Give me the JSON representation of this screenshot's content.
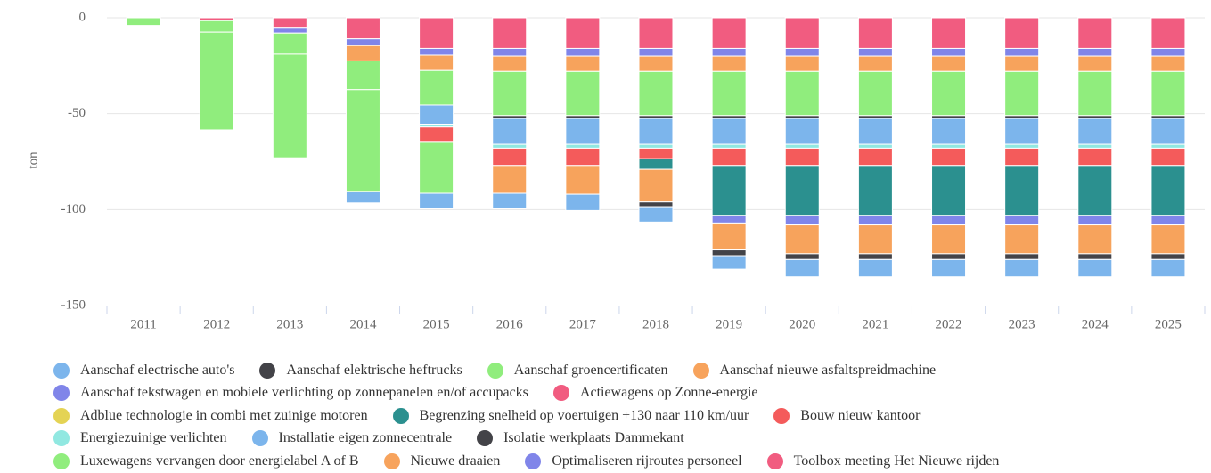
{
  "chart_data": {
    "type": "stacked_bar",
    "y_label": "ton",
    "categories": [
      "2011",
      "2012",
      "2013",
      "2014",
      "2015",
      "2016",
      "2017",
      "2018",
      "2019",
      "2020",
      "2021",
      "2022",
      "2023",
      "2024",
      "2025"
    ],
    "ylim": [
      -150,
      3
    ],
    "yticks": [
      0,
      -50,
      -100,
      -150
    ],
    "grid": true,
    "series": [
      {
        "name": "Aanschaf electrische auto's",
        "color": "#7cb5ec",
        "values": [
          0,
          0,
          0,
          -6,
          -8,
          -8,
          -8.5,
          -8,
          -7,
          -9,
          -9,
          -9,
          -9,
          -9,
          -9
        ]
      },
      {
        "name": "Aanschaf elektrische heftrucks",
        "color": "#434348",
        "values": [
          0,
          0,
          0,
          0,
          0,
          0,
          0,
          -2.5,
          -3,
          -3,
          -3,
          -3,
          -3,
          -3,
          -3
        ]
      },
      {
        "name": "Aanschaf groencertificaten",
        "color": "#90ed7d",
        "values": [
          0,
          -51,
          -54,
          -53,
          -27,
          0,
          0,
          0,
          0,
          0,
          0,
          0,
          0,
          0,
          0
        ]
      },
      {
        "name": "Aanschaf nieuwe asfaltspreidmachine",
        "color": "#f7a35c",
        "values": [
          0,
          0,
          0,
          0,
          0,
          -14.5,
          -15,
          -17,
          -14,
          -15,
          -15,
          -15,
          -15,
          -15,
          -15
        ]
      },
      {
        "name": "Aanschaf tekstwagen en mobiele verlichting op zonnepanelen en/of accupacks",
        "color": "#8085e9",
        "values": [
          0,
          0,
          0,
          0,
          0,
          0,
          0,
          0,
          -4,
          -5,
          -5,
          -5,
          -5,
          -5,
          -5
        ]
      },
      {
        "name": "Actiewagens op Zonne-energie",
        "color": "#f15c80",
        "values": [
          0,
          0,
          0,
          0,
          0,
          0,
          0,
          0,
          0,
          0,
          0,
          0,
          0,
          0,
          0
        ]
      },
      {
        "name": "Adblue technologie in combi met zuinige motoren",
        "color": "#e4d354",
        "values": [
          0,
          0,
          0,
          0,
          0,
          0,
          0,
          0,
          0,
          0,
          0,
          0,
          0,
          0,
          0
        ]
      },
      {
        "name": "Begrenzing snelheid op voertuigen +130 naar 110 km/uur",
        "color": "#2b908f",
        "values": [
          0,
          0,
          0,
          0,
          0,
          0,
          0,
          -5.5,
          -26,
          -26,
          -26,
          -26,
          -26,
          -26,
          -26
        ]
      },
      {
        "name": "Bouw nieuw kantoor",
        "color": "#f45b5b",
        "values": [
          0,
          0,
          0,
          0,
          -7.5,
          -9,
          -9,
          -5.5,
          -9,
          -9,
          -9,
          -9,
          -9,
          -9,
          -9
        ]
      },
      {
        "name": "Energiezuinige verlichten",
        "color": "#91e8e1",
        "values": [
          0,
          0,
          0,
          0,
          -1.5,
          -2,
          -2,
          -2,
          -2,
          -2,
          -2,
          -2,
          -2,
          -2,
          -2
        ]
      },
      {
        "name": "Installatie eigen zonnecentrale",
        "color": "#7cb5ec",
        "values": [
          0,
          0,
          0,
          0,
          -10,
          -13.5,
          -13.5,
          -13.5,
          -13.5,
          -13.5,
          -13.5,
          -13.5,
          -13.5,
          -13.5,
          -13.5
        ]
      },
      {
        "name": "Isolatie werkplaats Dammekant",
        "color": "#434348",
        "values": [
          0,
          0,
          0,
          0,
          0,
          -1.5,
          -1.5,
          -1.5,
          -1.5,
          -1.5,
          -1.5,
          -1.5,
          -1.5,
          -1.5,
          -1.5
        ]
      },
      {
        "name": "Luxewagens vervangen door energielabel A of B",
        "color": "#90ed7d",
        "values": [
          -4,
          -6,
          -11,
          -15,
          -18,
          -23,
          -23,
          -23,
          -23,
          -23,
          -23,
          -23,
          -23,
          -23,
          -23
        ]
      },
      {
        "name": "Nieuwe draaien",
        "color": "#f7a35c",
        "values": [
          0,
          0,
          0,
          -8,
          -8,
          -8,
          -8,
          -8,
          -8,
          -8,
          -8,
          -8,
          -8,
          -8,
          -8
        ]
      },
      {
        "name": "Optimaliseren rijroutes personeel",
        "color": "#8085e9",
        "values": [
          0,
          0,
          -3,
          -3.5,
          -3.5,
          -4,
          -4,
          -4,
          -4,
          -4,
          -4,
          -4,
          -4,
          -4,
          -4
        ]
      },
      {
        "name": "Toolbox meeting Het Nieuwe rijden",
        "color": "#f15c80",
        "values": [
          0,
          -1.5,
          -5,
          -11,
          -16,
          -16,
          -16,
          -16,
          -16,
          -16,
          -16,
          -16,
          -16,
          -16,
          -16
        ]
      }
    ]
  }
}
